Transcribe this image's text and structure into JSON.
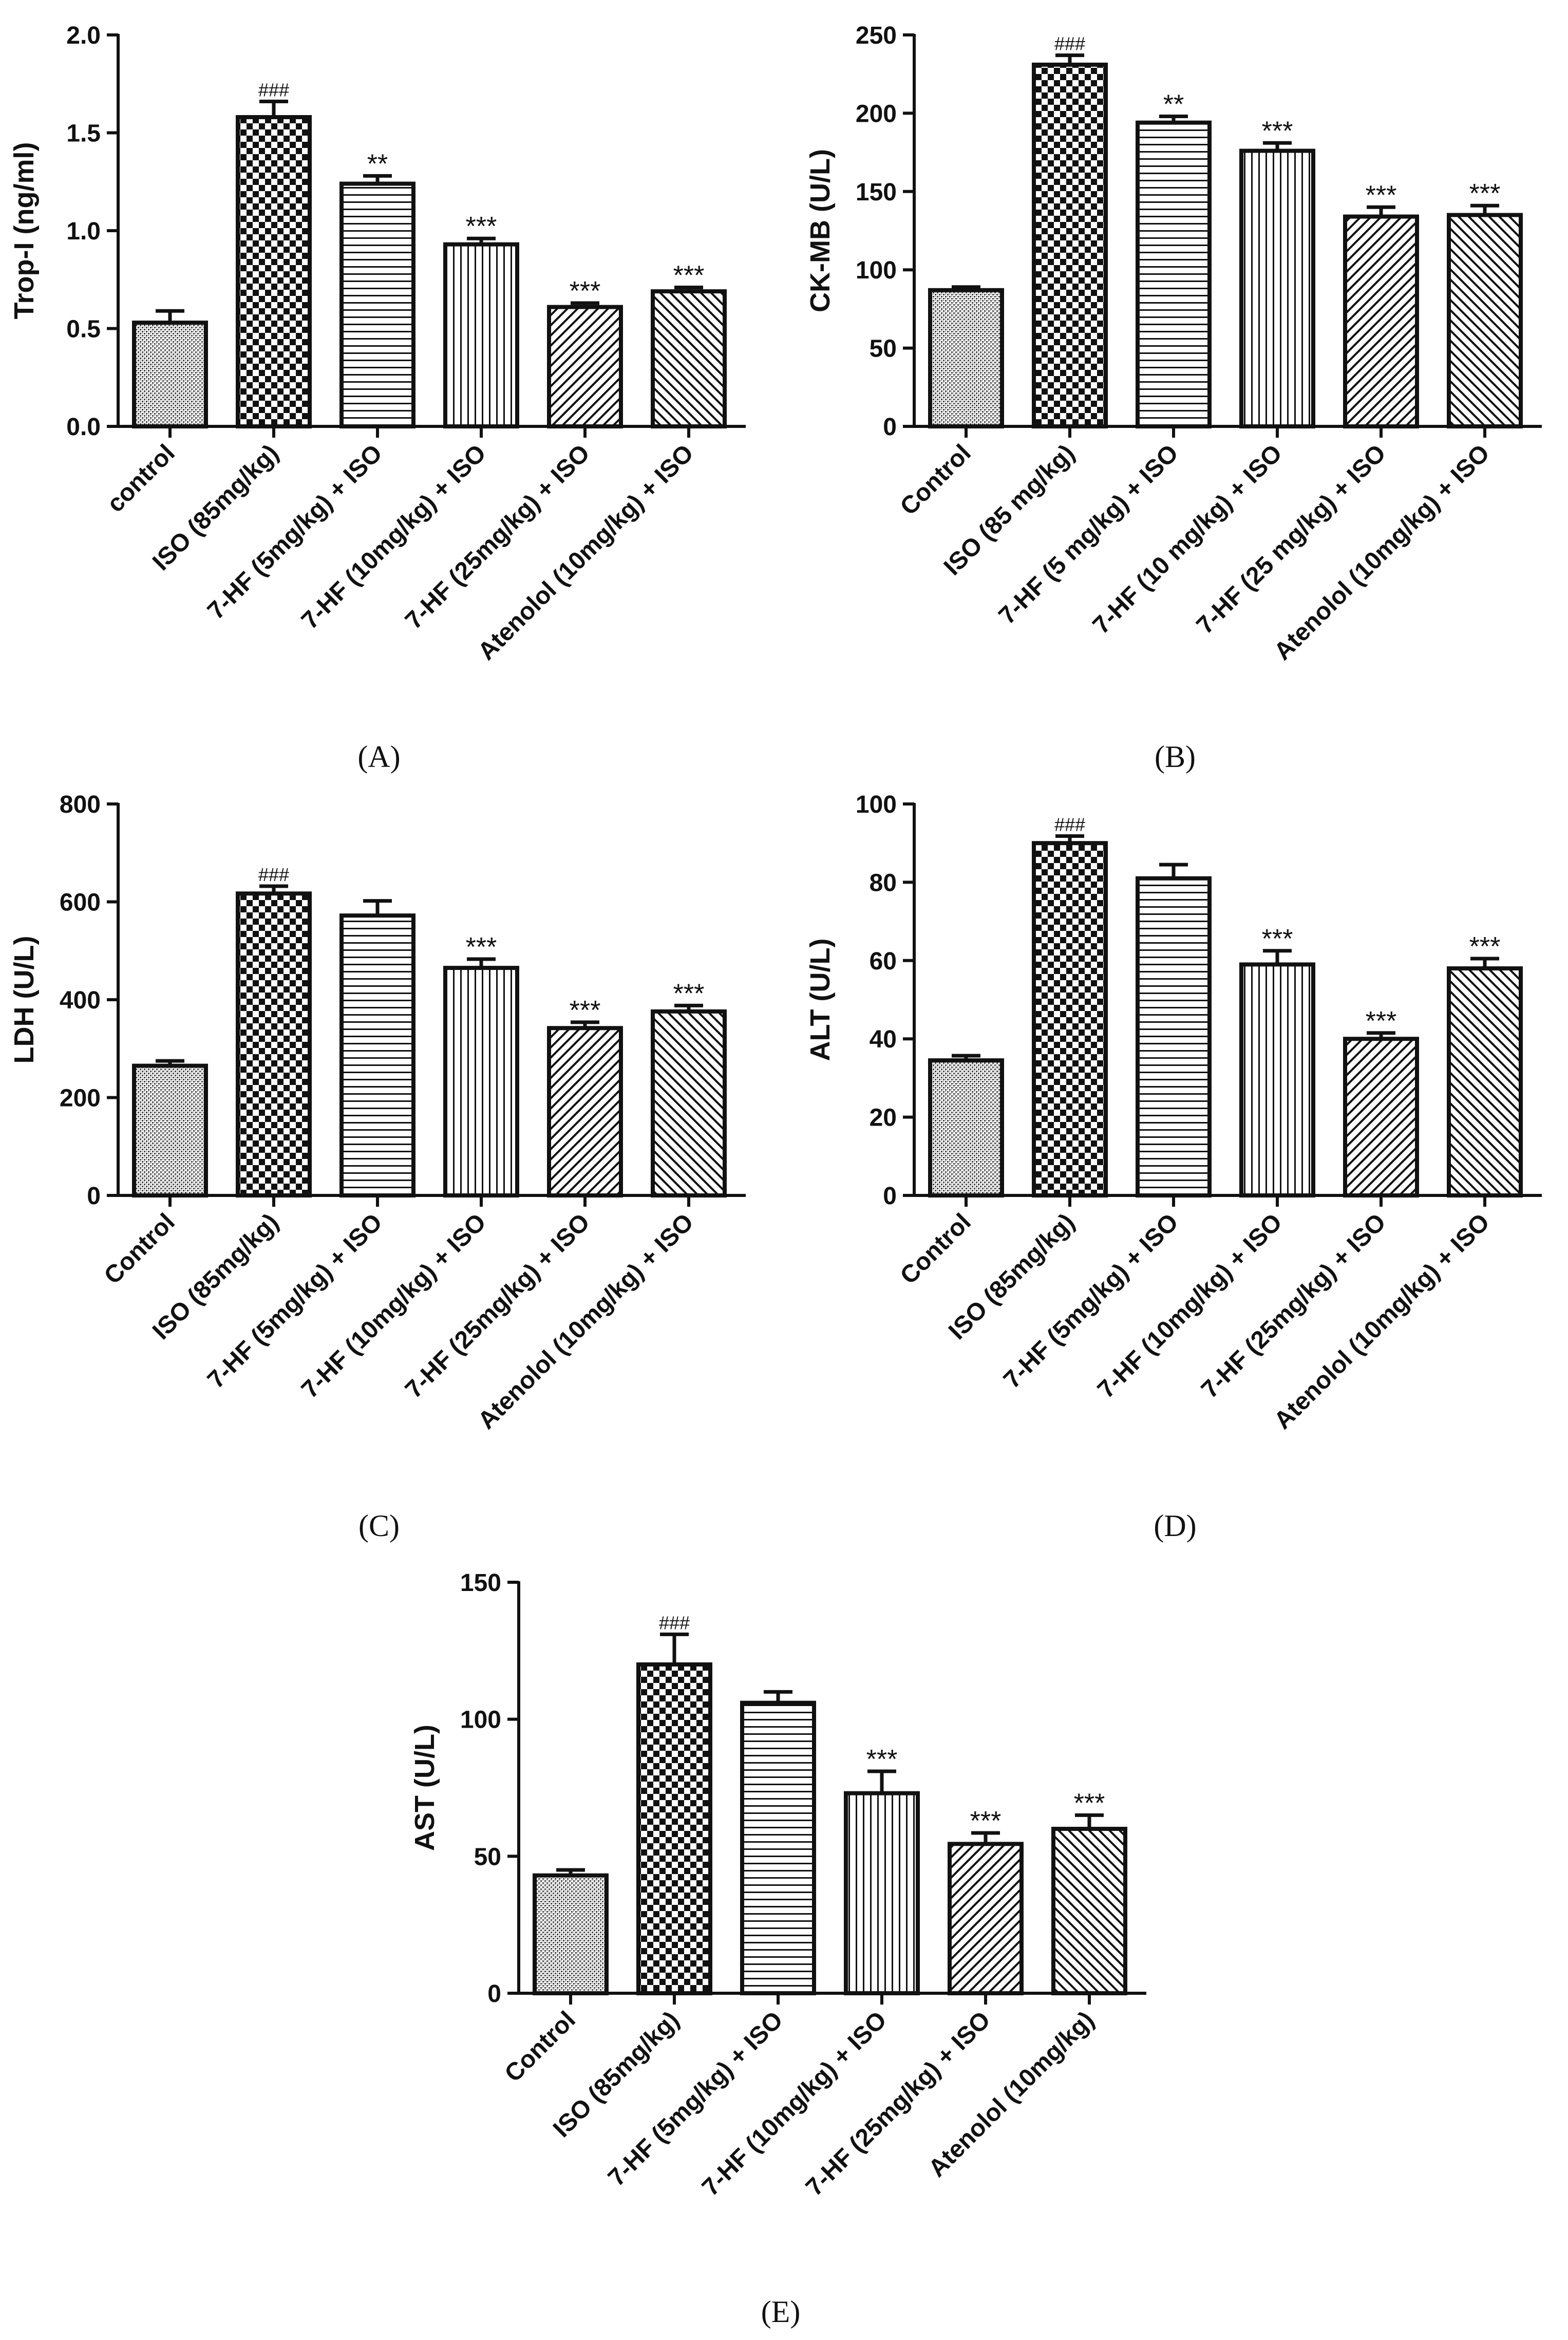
{
  "chart_data": [
    {
      "type": "bar",
      "panel": "A",
      "caption": "(A)",
      "ylabel": "Trop-I (ng/ml)",
      "ylim": [
        0,
        2.0
      ],
      "yticks": [
        "0.0",
        "0.5",
        "1.0",
        "1.5",
        "2.0"
      ],
      "categories": [
        "control",
        "ISO (85mg/kg)",
        "7-HF (5mg/kg) + ISO",
        "7-HF (10mg/kg) + ISO",
        "7-HF (25mg/kg) + ISO",
        "Atenolol (10mg/kg) + ISO"
      ],
      "values": [
        0.53,
        1.58,
        1.24,
        0.93,
        0.61,
        0.69
      ],
      "errors": [
        0.06,
        0.08,
        0.04,
        0.03,
        0.02,
        0.02
      ],
      "annotations": [
        "",
        "###",
        "**",
        "***",
        "***",
        "***"
      ]
    },
    {
      "type": "bar",
      "panel": "B",
      "caption": "(B)",
      "ylabel": "CK-MB (U/L)",
      "ylim": [
        0,
        250
      ],
      "yticks": [
        "0",
        "50",
        "100",
        "150",
        "200",
        "250"
      ],
      "categories": [
        "Control",
        "ISO (85 mg/kg)",
        "7-HF (5 mg/kg) + ISO",
        "7-HF (10 mg/kg) + ISO",
        "7-HF (25 mg/kg) + ISO",
        "Atenolol (10mg/kg) + ISO"
      ],
      "values": [
        87,
        231,
        194,
        176,
        134,
        135
      ],
      "errors": [
        2,
        6,
        4,
        5,
        6,
        6
      ],
      "annotations": [
        "",
        "###",
        "**",
        "***",
        "***",
        "***"
      ]
    },
    {
      "type": "bar",
      "panel": "C",
      "caption": "(C)",
      "ylabel": "LDH (U/L)",
      "ylim": [
        0,
        800
      ],
      "yticks": [
        "0",
        "200",
        "400",
        "600",
        "800"
      ],
      "categories": [
        "Control",
        "ISO (85mg/kg)",
        "7-HF (5mg/kg) + ISO",
        "7-HF (10mg/kg) + ISO",
        "7-HF (25mg/kg) + ISO",
        "Atenolol (10mg/kg) + ISO"
      ],
      "values": [
        265,
        617,
        572,
        465,
        342,
        376
      ],
      "errors": [
        10,
        15,
        30,
        18,
        12,
        12
      ],
      "annotations": [
        "",
        "###",
        "",
        "***",
        "***",
        "***"
      ]
    },
    {
      "type": "bar",
      "panel": "D",
      "caption": "(D)",
      "ylabel": "ALT (U/L)",
      "ylim": [
        0,
        100
      ],
      "yticks": [
        "0",
        "20",
        "40",
        "60",
        "80",
        "100"
      ],
      "categories": [
        "Control",
        "ISO (85mg/kg)",
        "7-HF (5mg/kg) + ISO",
        "7-HF (10mg/kg) + ISO",
        "7-HF (25mg/kg) + ISO",
        "Atenolol (10mg/kg) + ISO"
      ],
      "values": [
        34.5,
        90,
        81,
        59,
        40,
        58
      ],
      "errors": [
        1.2,
        1.8,
        3.5,
        3.5,
        1.5,
        2.5
      ],
      "annotations": [
        "",
        "###",
        "",
        "***",
        "***",
        "***"
      ]
    },
    {
      "type": "bar",
      "panel": "E",
      "caption": "(E)",
      "ylabel": "AST (U/L)",
      "ylim": [
        0,
        150
      ],
      "yticks": [
        "0",
        "50",
        "100",
        "150"
      ],
      "categories": [
        "Control",
        "ISO (85mg/kg)",
        "7-HF (5mg/kg) + ISO",
        "7-HF (10mg/kg) + ISO",
        "7-HF (25mg/kg) + ISO",
        "Atenolol (10mg/kg)"
      ],
      "values": [
        43,
        120,
        106,
        73,
        54.5,
        60
      ],
      "errors": [
        2,
        11,
        4,
        8,
        4,
        5
      ],
      "annotations": [
        "",
        "###",
        "",
        "***",
        "***",
        "***"
      ]
    }
  ]
}
